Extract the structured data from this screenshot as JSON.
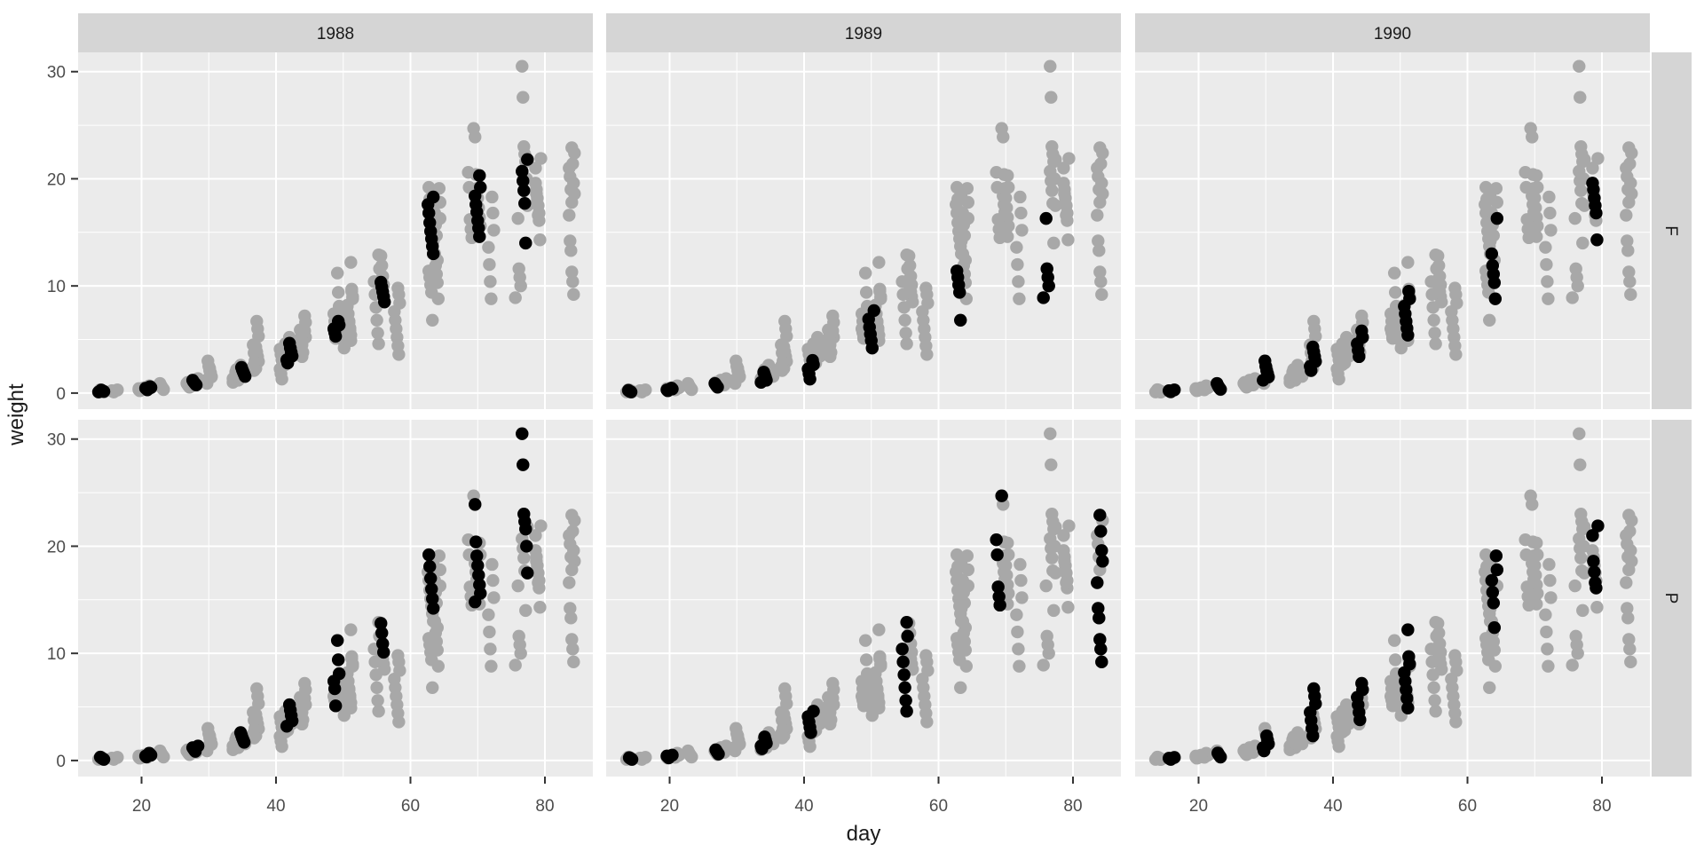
{
  "chart_data": {
    "type": "scatter",
    "title": "",
    "xlabel": "day",
    "ylabel": "weight",
    "facet_column_variable": "year",
    "facet_row_variable": "variety",
    "col_facets": [
      "1988",
      "1989",
      "1990"
    ],
    "row_facets": [
      "F",
      "P"
    ],
    "x_ticks": [
      20,
      40,
      60,
      80
    ],
    "x_minor_ticks": [
      30,
      50,
      70
    ],
    "y_ticks": [
      0,
      10,
      20,
      30
    ],
    "y_minor_ticks": [
      5,
      15,
      25
    ],
    "x_range": [
      10.56,
      87.13
    ],
    "y_range": [
      -1.5,
      31.8
    ],
    "grid": "on",
    "legend": "none",
    "note": "grey points = all observations repeated in every panel; black points = observations belonging to that panel's year x variety subset",
    "colors": {
      "background_points": "#A8A8A8",
      "highlight_points": "#000000",
      "panel_bg": "#EBEBEB",
      "strip_bg": "#D5D5D5",
      "gridline": "#FFFFFF",
      "tick_mark": "#333333",
      "tick_label": "#4D4D4D",
      "title_text": "#1A1A1A"
    },
    "facets": [
      {
        "year": "1988",
        "variety": "F",
        "clusters": [
          {
            "day": 14,
            "weights": [
              0.1,
              0.15,
              0.18,
              0.22,
              0.28
            ]
          },
          {
            "day": 21,
            "weights": [
              0.3,
              0.38,
              0.45,
              0.52,
              0.6
            ]
          },
          {
            "day": 28,
            "weights": [
              0.75,
              0.85,
              0.95,
              1.05,
              1.2
            ]
          },
          {
            "day": 35,
            "weights": [
              1.55,
              1.75,
              1.95,
              2.15,
              2.4
            ]
          },
          {
            "day": 42,
            "weights": [
              2.8,
              3.1,
              3.45,
              3.8,
              4.2,
              4.65
            ]
          },
          {
            "day": 49,
            "weights": [
              5.3,
              5.65,
              6.0,
              6.35,
              6.7
            ]
          },
          {
            "day": 56,
            "weights": [
              8.5,
              9.0,
              9.45,
              9.9,
              10.35
            ]
          },
          {
            "day": 63,
            "weights": [
              13.0,
              13.7,
              14.4,
              15.1,
              15.9,
              16.8,
              17.6,
              18.3
            ]
          },
          {
            "day": 70,
            "weights": [
              14.6,
              15.4,
              16.1,
              16.9,
              17.6,
              18.4,
              19.2,
              20.3
            ]
          },
          {
            "day": 77,
            "weights": [
              14.0,
              17.7,
              18.9,
              19.8,
              20.7,
              21.8
            ]
          }
        ]
      },
      {
        "year": "1989",
        "variety": "F",
        "clusters": [
          {
            "day": 14,
            "weights": [
              0.1,
              0.14,
              0.18,
              0.25
            ]
          },
          {
            "day": 20,
            "weights": [
              0.22,
              0.3,
              0.38,
              0.46
            ]
          },
          {
            "day": 27,
            "weights": [
              0.55,
              0.65,
              0.78,
              0.9
            ]
          },
          {
            "day": 34,
            "weights": [
              1.0,
              1.2,
              1.45,
              1.7,
              1.95
            ]
          },
          {
            "day": 41,
            "weights": [
              1.3,
              1.8,
              2.25,
              2.65,
              3.05
            ]
          },
          {
            "day": 50,
            "weights": [
              4.2,
              4.9,
              5.5,
              6.15,
              6.9,
              7.7
            ]
          },
          {
            "day": 63,
            "weights": [
              6.8,
              9.4,
              10.1,
              10.8,
              11.4
            ]
          },
          {
            "day": 76,
            "weights": [
              8.9,
              10.0,
              10.8,
              11.6,
              16.3
            ]
          }
        ]
      },
      {
        "year": "1990",
        "variety": "F",
        "clusters": [
          {
            "day": 16,
            "weights": [
              0.12,
              0.16,
              0.22,
              0.3
            ]
          },
          {
            "day": 23,
            "weights": [
              0.35,
              0.45,
              0.57,
              0.72,
              0.9
            ]
          },
          {
            "day": 30,
            "weights": [
              1.2,
              1.5,
              1.8,
              2.1,
              2.5,
              3.0
            ]
          },
          {
            "day": 37,
            "weights": [
              2.1,
              2.5,
              2.95,
              3.4,
              3.85,
              4.3
            ]
          },
          {
            "day": 44,
            "weights": [
              3.4,
              4.0,
              4.6,
              5.2,
              5.8
            ]
          },
          {
            "day": 51,
            "weights": [
              5.4,
              6.05,
              6.7,
              7.4,
              8.1,
              8.8,
              9.5
            ]
          },
          {
            "day": 64,
            "weights": [
              8.8,
              10.3,
              11.1,
              11.9,
              13.0,
              16.3
            ]
          },
          {
            "day": 79,
            "weights": [
              14.3,
              16.8,
              17.5,
              18.2,
              19.0,
              19.6
            ]
          }
        ]
      },
      {
        "year": "1988",
        "variety": "P",
        "clusters": [
          {
            "day": 14,
            "weights": [
              0.1,
              0.14,
              0.19,
              0.25,
              0.32
            ]
          },
          {
            "day": 21,
            "weights": [
              0.33,
              0.42,
              0.5,
              0.58,
              0.68
            ]
          },
          {
            "day": 28,
            "weights": [
              0.85,
              0.95,
              1.08,
              1.2,
              1.35
            ]
          },
          {
            "day": 35,
            "weights": [
              1.7,
              1.9,
              2.1,
              2.35,
              2.6
            ]
          },
          {
            "day": 42,
            "weights": [
              3.2,
              3.7,
              4.2,
              4.7,
              5.2
            ]
          },
          {
            "day": 49,
            "weights": [
              5.1,
              6.7,
              7.4,
              8.1,
              9.4,
              11.2
            ]
          },
          {
            "day": 56,
            "weights": [
              10.1,
              10.9,
              11.9,
              12.8
            ]
          },
          {
            "day": 63,
            "weights": [
              14.2,
              15.1,
              16.0,
              17.0,
              18.1,
              19.2
            ]
          },
          {
            "day": 70,
            "weights": [
              14.8,
              15.6,
              16.4,
              17.3,
              18.2,
              19.1,
              20.4,
              23.9
            ]
          },
          {
            "day": 77,
            "weights": [
              17.5,
              20.0,
              21.6,
              22.3,
              23.0,
              27.6,
              30.5
            ]
          }
        ]
      },
      {
        "year": "1989",
        "variety": "P",
        "clusters": [
          {
            "day": 14,
            "weights": [
              0.1,
              0.15,
              0.2,
              0.26
            ]
          },
          {
            "day": 20,
            "weights": [
              0.25,
              0.33,
              0.42,
              0.5
            ]
          },
          {
            "day": 27,
            "weights": [
              0.6,
              0.72,
              0.85,
              1.0
            ]
          },
          {
            "day": 34,
            "weights": [
              1.1,
              1.35,
              1.6,
              1.9,
              2.2
            ]
          },
          {
            "day": 41,
            "weights": [
              2.6,
              3.1,
              3.6,
              4.1,
              4.6
            ]
          },
          {
            "day": 55,
            "weights": [
              4.6,
              5.6,
              6.8,
              8.0,
              9.2,
              10.4,
              11.6,
              12.9
            ]
          },
          {
            "day": 69,
            "weights": [
              14.5,
              15.3,
              16.2,
              19.2,
              20.6,
              24.7
            ]
          },
          {
            "day": 84,
            "weights": [
              9.2,
              10.4,
              11.3,
              13.3,
              14.2,
              16.6,
              18.6,
              19.6,
              21.4,
              22.9
            ]
          }
        ]
      },
      {
        "year": "1990",
        "variety": "P",
        "clusters": [
          {
            "day": 16,
            "weights": [
              0.1,
              0.15,
              0.21,
              0.28
            ]
          },
          {
            "day": 23,
            "weights": [
              0.32,
              0.43,
              0.55,
              0.7
            ]
          },
          {
            "day": 30,
            "weights": [
              0.9,
              1.2,
              1.55,
              1.9,
              2.3
            ]
          },
          {
            "day": 37,
            "weights": [
              2.3,
              3.0,
              3.75,
              4.5,
              5.3,
              6.0,
              6.7
            ]
          },
          {
            "day": 44,
            "weights": [
              3.8,
              4.5,
              5.2,
              5.9,
              6.6,
              7.2
            ]
          },
          {
            "day": 51,
            "weights": [
              4.9,
              5.8,
              6.6,
              7.4,
              8.2,
              9.0,
              9.7,
              12.2
            ]
          },
          {
            "day": 64,
            "weights": [
              12.4,
              14.7,
              15.7,
              16.8,
              17.8,
              19.1
            ]
          },
          {
            "day": 79,
            "weights": [
              16.1,
              16.6,
              17.6,
              18.6,
              21.0,
              21.9
            ]
          }
        ]
      }
    ],
    "background_only_clusters": [
      {
        "day": 58,
        "weights": [
          3.6,
          4.4,
          5.2,
          6.0,
          6.8,
          7.6,
          8.4,
          9.2,
          9.8
        ]
      },
      {
        "day": 72,
        "weights": [
          8.8,
          10.4,
          12.0,
          13.6,
          15.2,
          16.8,
          18.3
        ]
      },
      {
        "day": 84,
        "weights": [
          17.8,
          19.0,
          20.2,
          21.0,
          22.4
        ]
      }
    ]
  }
}
